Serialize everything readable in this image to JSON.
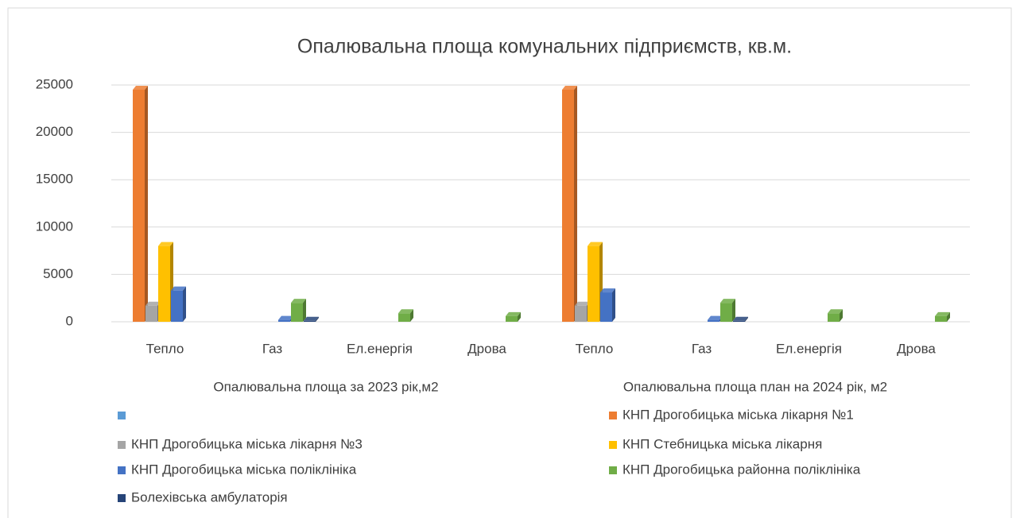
{
  "chart_data": {
    "type": "bar3d",
    "title": "Опалювальна площа комунальних підприємств, кв.м.",
    "groups": [
      "Опалювальна площа за 2023 рік,м2",
      "Опалювальна площа план на 2024 рік, м2"
    ],
    "categories": [
      "Тепло",
      "Газ",
      "Ел.енергія",
      "Дрова",
      "Тепло",
      "Газ",
      "Ел.енергія",
      "Дрова"
    ],
    "series": [
      {
        "name": null,
        "color": "#5b9bd5",
        "values": [
          null,
          null,
          null,
          null,
          null,
          null,
          null,
          null
        ]
      },
      {
        "name": "КНП Дрогобицька міська лікарня №1",
        "color": "#ed7d31",
        "values": [
          24500,
          null,
          null,
          null,
          24500,
          null,
          null,
          null
        ]
      },
      {
        "name": "КНП Дрогобицька міська лікарня №3",
        "color": "#a5a5a5",
        "values": [
          1700,
          null,
          null,
          null,
          1700,
          null,
          null,
          null
        ]
      },
      {
        "name": "КНП Стебницька міська лікарня",
        "color": "#ffc000",
        "values": [
          8000,
          null,
          null,
          null,
          8000,
          null,
          null,
          null
        ]
      },
      {
        "name": "КНП Дрогобицька міська поліклініка",
        "color": "#4472c4",
        "values": [
          3300,
          200,
          null,
          null,
          3100,
          200,
          null,
          null
        ]
      },
      {
        "name": "КНП Дрогобицька районна поліклініка",
        "color": "#70ad47",
        "values": [
          null,
          2000,
          900,
          600,
          null,
          2000,
          900,
          600
        ]
      },
      {
        "name": "Болехівська амбулаторія",
        "color": "#264478",
        "values": [
          null,
          100,
          null,
          null,
          null,
          100,
          null,
          null
        ]
      }
    ],
    "ylim": [
      0,
      25000
    ],
    "yticks": [
      0,
      5000,
      10000,
      15000,
      20000,
      25000
    ],
    "grid": true
  }
}
